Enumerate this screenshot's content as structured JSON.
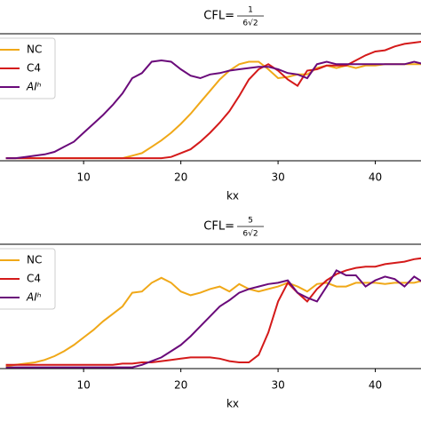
{
  "chart_data": [
    {
      "type": "line",
      "title": {
        "prefix": "CFL=",
        "numerator": "1",
        "denominator": "6√2"
      },
      "xlabel": "kx",
      "x": [
        2,
        3,
        4,
        5,
        6,
        7,
        8,
        9,
        10,
        11,
        12,
        13,
        14,
        15,
        16,
        17,
        18,
        19,
        20,
        21,
        22,
        23,
        24,
        25,
        26,
        27,
        28,
        29,
        30,
        31,
        32,
        33,
        34,
        35,
        36,
        37,
        38,
        39,
        40,
        41,
        42,
        43,
        44,
        45
      ],
      "xlim": [
        1.4,
        44.7
      ],
      "xticks": [
        10,
        20,
        30,
        40
      ],
      "ylim": [
        0,
        1
      ],
      "legend": "upper left",
      "series": [
        {
          "name": "NC",
          "color": "#f0a818",
          "values": [
            0.02,
            0.02,
            0.02,
            0.02,
            0.02,
            0.02,
            0.02,
            0.02,
            0.02,
            0.02,
            0.02,
            0.02,
            0.02,
            0.04,
            0.06,
            0.11,
            0.16,
            0.22,
            0.29,
            0.37,
            0.46,
            0.55,
            0.64,
            0.71,
            0.76,
            0.78,
            0.78,
            0.72,
            0.65,
            0.66,
            0.68,
            0.68,
            0.73,
            0.75,
            0.73,
            0.75,
            0.73,
            0.75,
            0.75,
            0.76,
            0.76,
            0.76,
            0.76,
            0.76
          ]
        },
        {
          "name": "C4",
          "color": "#d41a1a",
          "values": [
            0.02,
            0.02,
            0.02,
            0.02,
            0.02,
            0.02,
            0.02,
            0.02,
            0.02,
            0.02,
            0.02,
            0.02,
            0.02,
            0.02,
            0.02,
            0.02,
            0.02,
            0.03,
            0.06,
            0.09,
            0.15,
            0.22,
            0.3,
            0.39,
            0.51,
            0.64,
            0.72,
            0.76,
            0.71,
            0.64,
            0.59,
            0.71,
            0.72,
            0.75,
            0.75,
            0.75,
            0.79,
            0.83,
            0.86,
            0.87,
            0.9,
            0.92,
            0.93,
            0.94
          ]
        },
        {
          "name": "AIʰ",
          "color": "#6a0a7a",
          "values": [
            0.02,
            0.02,
            0.03,
            0.04,
            0.05,
            0.07,
            0.11,
            0.15,
            0.22,
            0.29,
            0.36,
            0.44,
            0.53,
            0.65,
            0.69,
            0.78,
            0.79,
            0.78,
            0.72,
            0.67,
            0.65,
            0.68,
            0.69,
            0.71,
            0.72,
            0.73,
            0.74,
            0.74,
            0.72,
            0.69,
            0.68,
            0.65,
            0.76,
            0.78,
            0.76,
            0.76,
            0.76,
            0.76,
            0.76,
            0.76,
            0.76,
            0.76,
            0.78,
            0.76
          ]
        }
      ]
    },
    {
      "type": "line",
      "title": {
        "prefix": "CFL=",
        "numerator": "5",
        "denominator": "6√2"
      },
      "xlabel": "kx",
      "x": [
        2,
        3,
        4,
        5,
        6,
        7,
        8,
        9,
        10,
        11,
        12,
        13,
        14,
        15,
        16,
        17,
        18,
        19,
        20,
        21,
        22,
        23,
        24,
        25,
        26,
        27,
        28,
        29,
        30,
        31,
        32,
        33,
        34,
        35,
        36,
        37,
        38,
        39,
        40,
        41,
        42,
        43,
        44,
        45
      ],
      "xlim": [
        1.4,
        44.7
      ],
      "xticks": [
        10,
        20,
        30,
        40
      ],
      "ylim": [
        0,
        1
      ],
      "legend": "upper left",
      "series": [
        {
          "name": "NC",
          "color": "#f0a818",
          "values": [
            0.02,
            0.03,
            0.04,
            0.05,
            0.07,
            0.1,
            0.14,
            0.19,
            0.25,
            0.31,
            0.38,
            0.44,
            0.5,
            0.61,
            0.62,
            0.69,
            0.73,
            0.69,
            0.62,
            0.59,
            0.61,
            0.64,
            0.66,
            0.62,
            0.68,
            0.64,
            0.62,
            0.64,
            0.66,
            0.69,
            0.66,
            0.62,
            0.68,
            0.69,
            0.66,
            0.66,
            0.69,
            0.69,
            0.69,
            0.68,
            0.69,
            0.69,
            0.69,
            0.71
          ]
        },
        {
          "name": "C4",
          "color": "#d41a1a",
          "values": [
            0.03,
            0.03,
            0.03,
            0.03,
            0.03,
            0.03,
            0.03,
            0.03,
            0.03,
            0.03,
            0.03,
            0.03,
            0.04,
            0.04,
            0.05,
            0.05,
            0.06,
            0.07,
            0.08,
            0.09,
            0.09,
            0.09,
            0.08,
            0.06,
            0.05,
            0.05,
            0.11,
            0.29,
            0.54,
            0.69,
            0.61,
            0.54,
            0.64,
            0.71,
            0.76,
            0.79,
            0.81,
            0.82,
            0.82,
            0.84,
            0.85,
            0.86,
            0.88,
            0.89
          ]
        },
        {
          "name": "AIʰ",
          "color": "#6a0a7a",
          "values": [
            0.01,
            0.01,
            0.01,
            0.01,
            0.01,
            0.01,
            0.01,
            0.01,
            0.01,
            0.01,
            0.01,
            0.01,
            0.01,
            0.01,
            0.03,
            0.06,
            0.09,
            0.14,
            0.19,
            0.26,
            0.34,
            0.42,
            0.5,
            0.55,
            0.61,
            0.64,
            0.66,
            0.68,
            0.69,
            0.71,
            0.61,
            0.57,
            0.54,
            0.66,
            0.79,
            0.75,
            0.75,
            0.66,
            0.71,
            0.74,
            0.72,
            0.66,
            0.74,
            0.69
          ]
        }
      ]
    }
  ]
}
